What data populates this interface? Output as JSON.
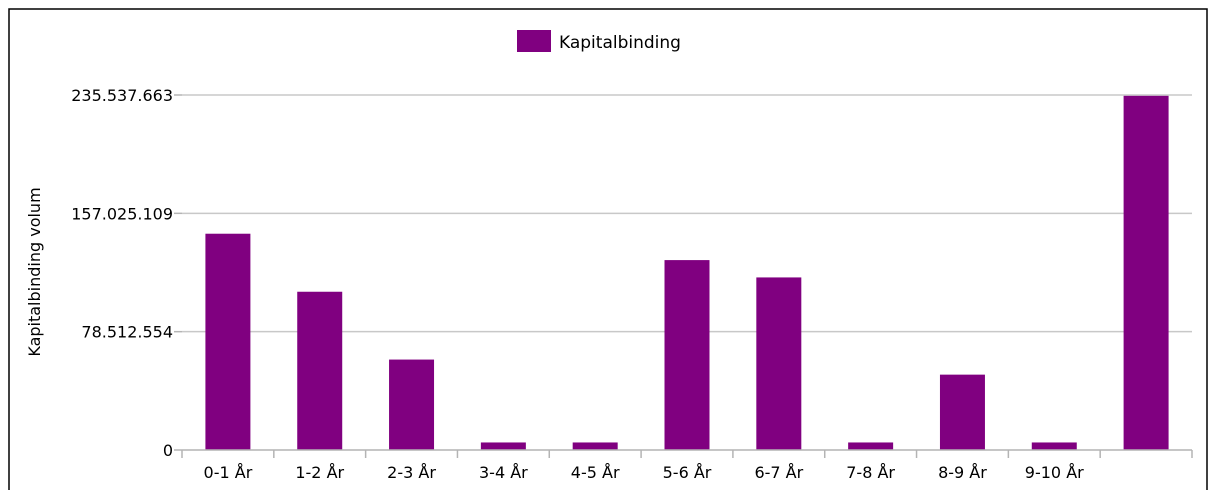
{
  "chart_data": {
    "type": "bar",
    "legend": {
      "label": "Kapitalbinding",
      "placement": "top"
    },
    "ylabel": "Kapitalbinding volum",
    "xlabel": "",
    "categories": [
      "0-1 År",
      "1-2 År",
      "2-3 År",
      "3-4 År",
      "4-5 År",
      "5-6 År",
      "6-7 År",
      "7-8 År",
      "8-9 År",
      "9-10 År",
      ""
    ],
    "series": [
      {
        "name": "Kapitalbinding",
        "color": "#800080",
        "values": [
          143500000,
          105000000,
          60000000,
          5000000,
          5000000,
          126000000,
          114500000,
          5000000,
          50000000,
          5000000,
          235000000
        ]
      }
    ],
    "yticks": [
      {
        "value": 0,
        "label": "0"
      },
      {
        "value": 78512554,
        "label": "78.512.554"
      },
      {
        "value": 157025109,
        "label": "157.025.109"
      },
      {
        "value": 235537663,
        "label": "235.537.663"
      }
    ],
    "ylim": [
      0,
      235537663
    ],
    "grid": true
  }
}
